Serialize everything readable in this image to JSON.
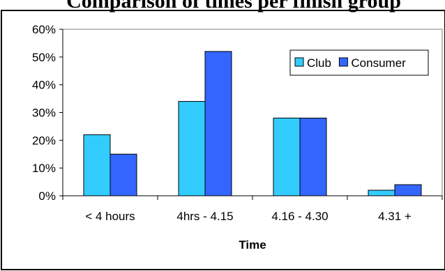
{
  "chart_data": {
    "type": "bar",
    "title_fragment": "Comparison of times per finish group",
    "categories": [
      "< 4 hours",
      "4hrs - 4.15",
      "4.16 - 4.30",
      "4.31 +"
    ],
    "series": [
      {
        "name": "Club",
        "values": [
          22,
          34,
          28,
          2
        ],
        "color": "#33ccff"
      },
      {
        "name": "Consumer",
        "values": [
          15,
          52,
          28,
          4
        ],
        "color": "#3366ff"
      }
    ],
    "xlabel": "Time",
    "ylabel": "",
    "ylim": [
      0,
      60
    ],
    "yticks": [
      "0%",
      "10%",
      "20%",
      "30%",
      "40%",
      "50%",
      "60%"
    ],
    "ytick_values": [
      0,
      10,
      20,
      30,
      40,
      50,
      60
    ],
    "grid": false,
    "legend_position": "top-right"
  }
}
